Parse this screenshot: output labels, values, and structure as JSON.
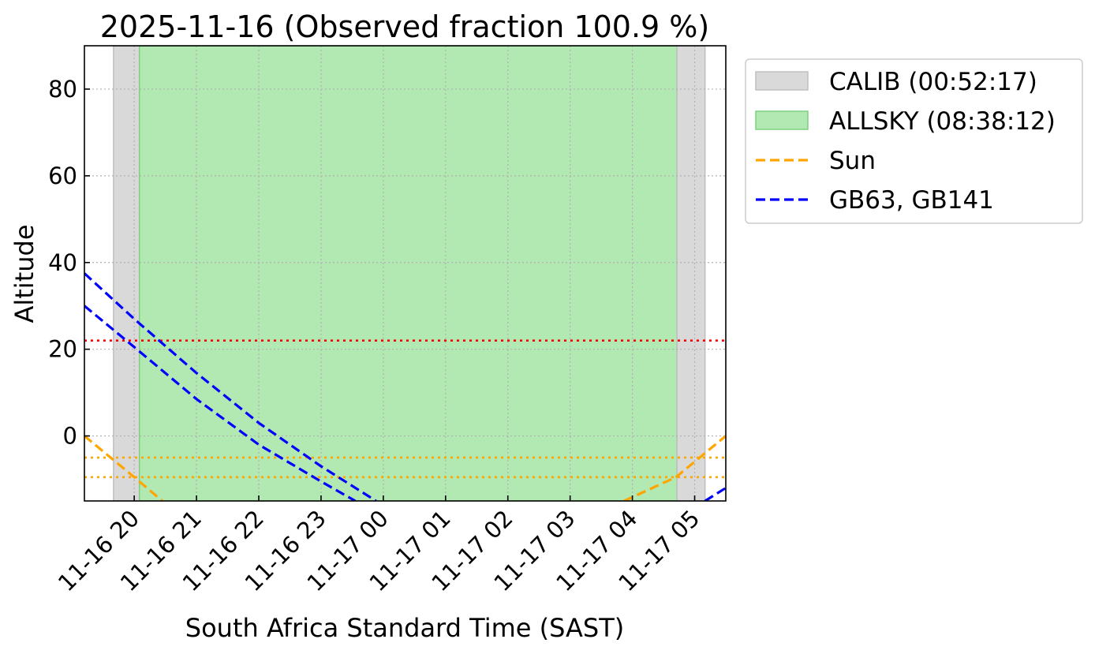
{
  "chart_data": {
    "type": "line",
    "title": "2025-11-16 (Observed fraction 100.9 %)",
    "xlabel": "South Africa Standard Time (SAST)",
    "ylabel": "Altitude",
    "xlim": [
      "2025-11-16 19:12",
      "2025-11-17 05:30"
    ],
    "ylim": [
      -15,
      90
    ],
    "grid": true,
    "legend_placement": "outside upper right",
    "xticks": [
      {
        "t": "2025-11-16 20:00",
        "label": "11-16 20"
      },
      {
        "t": "2025-11-16 21:00",
        "label": "11-16 21"
      },
      {
        "t": "2025-11-16 22:00",
        "label": "11-16 22"
      },
      {
        "t": "2025-11-16 23:00",
        "label": "11-16 23"
      },
      {
        "t": "2025-11-17 00:00",
        "label": "11-17 00"
      },
      {
        "t": "2025-11-17 01:00",
        "label": "11-17 01"
      },
      {
        "t": "2025-11-17 02:00",
        "label": "11-17 02"
      },
      {
        "t": "2025-11-17 03:00",
        "label": "11-17 03"
      },
      {
        "t": "2025-11-17 04:00",
        "label": "11-17 04"
      },
      {
        "t": "2025-11-17 05:00",
        "label": "11-17 05"
      }
    ],
    "yticks": [
      0,
      20,
      40,
      60,
      80
    ],
    "spans": [
      {
        "name": "CALIB (00:52:17)",
        "start": "2025-11-16 19:40",
        "end": "2025-11-16 20:05",
        "color": "#d9d9d9",
        "edge": "#bfbfbf"
      },
      {
        "name": "ALLSKY (08:38:12)",
        "start": "2025-11-16 20:05",
        "end": "2025-11-17 04:43",
        "color": "#b2e8b2",
        "edge": "#7fcf7f"
      },
      {
        "start": "2025-11-17 04:43",
        "end": "2025-11-17 05:10",
        "color": "#d9d9d9",
        "edge": "#bfbfbf"
      }
    ],
    "hlines": [
      {
        "y": 22,
        "color": "#ff0000"
      },
      {
        "y": -5,
        "color": "#ffa500"
      },
      {
        "y": -9.5,
        "color": "#ffa500"
      }
    ],
    "series": [
      {
        "name": "Sun",
        "color": "#ffa500",
        "style": "dashed",
        "points": [
          [
            "2025-11-16 19:12",
            0
          ],
          [
            "2025-11-16 20:00",
            -9.5
          ],
          [
            "2025-11-16 20:27",
            -15
          ]
        ]
      },
      {
        "name": "Sun",
        "color": "#ffa500",
        "style": "dashed",
        "points": [
          [
            "2025-11-17 03:52",
            -15
          ],
          [
            "2025-11-17 04:42",
            -9.5
          ],
          [
            "2025-11-17 05:30",
            0
          ]
        ]
      },
      {
        "name": "GB63, GB141",
        "color": "#0000ff",
        "style": "dashed",
        "points": [
          [
            "2025-11-16 19:12",
            37.5
          ],
          [
            "2025-11-16 20:00",
            27
          ],
          [
            "2025-11-16 21:00",
            14.5
          ],
          [
            "2025-11-16 22:00",
            3
          ],
          [
            "2025-11-16 23:00",
            -7
          ],
          [
            "2025-11-16 23:53",
            -15
          ]
        ]
      },
      {
        "name": "GB63, GB141",
        "color": "#0000ff",
        "style": "dashed",
        "points": [
          [
            "2025-11-16 19:12",
            30
          ],
          [
            "2025-11-16 20:00",
            20.5
          ],
          [
            "2025-11-16 21:00",
            8.5
          ],
          [
            "2025-11-16 22:00",
            -2
          ],
          [
            "2025-11-16 23:00",
            -10.5
          ],
          [
            "2025-11-16 23:33",
            -15
          ]
        ]
      },
      {
        "name": "GB63, GB141",
        "color": "#0000ff",
        "style": "dashed",
        "points": [
          [
            "2025-11-17 05:10",
            -15
          ],
          [
            "2025-11-17 05:30",
            -12
          ]
        ]
      }
    ],
    "legend": [
      {
        "label": "CALIB (00:52:17)",
        "kind": "patch",
        "color": "#d9d9d9",
        "edge": "#bfbfbf"
      },
      {
        "label": "ALLSKY (08:38:12)",
        "kind": "patch",
        "color": "#b2e8b2",
        "edge": "#7fcf7f"
      },
      {
        "label": "Sun",
        "kind": "dashed-line",
        "color": "#ffa500"
      },
      {
        "label": "GB63, GB141",
        "kind": "dashed-line",
        "color": "#0000ff"
      }
    ]
  }
}
